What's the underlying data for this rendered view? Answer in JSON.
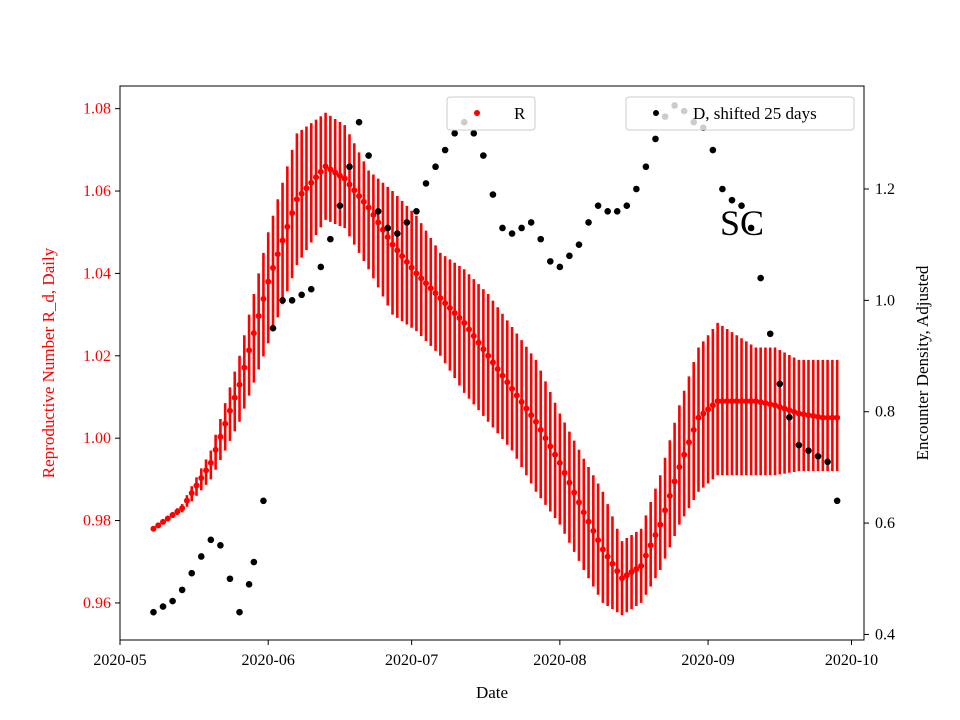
{
  "chart_data": {
    "type": "scatter",
    "xlabel": "Date",
    "ylabel_left": "Reproductive Number R_d, Daily",
    "ylabel_right": "Encounter Density, Adjusted",
    "annotation": "SC",
    "x_ticks": [
      "2020-05",
      "2020-06",
      "2020-07",
      "2020-08",
      "2020-09",
      "2020-10"
    ],
    "y_left_ticks": [
      "0.96",
      "0.98",
      "1.00",
      "1.02",
      "1.04",
      "1.06",
      "1.08"
    ],
    "y_right_ticks": [
      "0.4",
      "0.6",
      "0.8",
      "1.0",
      "1.2"
    ],
    "xlim": [
      "2020-05-01",
      "2020-10-01"
    ],
    "ylim_left": [
      0.951,
      1.0855
    ],
    "ylim_right": [
      0.39,
      1.385
    ],
    "legend_left_position": "top-center",
    "legend_right_position": "top-right",
    "grid": false,
    "colors": {
      "R": "#ff0000",
      "D": "#000000",
      "left_axis_text": "#ff0000"
    },
    "series": [
      {
        "name": "R",
        "axis": "left",
        "style": "points-with-error-bars",
        "x": [
          "2020-05-08",
          "2020-05-14",
          "2020-05-20",
          "2020-05-26",
          "2020-06-01",
          "2020-06-07",
          "2020-06-13",
          "2020-06-17",
          "2020-06-22",
          "2020-06-27",
          "2020-07-02",
          "2020-07-07",
          "2020-07-12",
          "2020-07-17",
          "2020-07-22",
          "2020-07-27",
          "2020-08-01",
          "2020-08-06",
          "2020-08-10",
          "2020-08-14",
          "2020-08-18",
          "2020-08-22",
          "2020-08-26",
          "2020-08-30",
          "2020-09-03",
          "2020-09-07",
          "2020-09-11",
          "2020-09-15",
          "2020-09-20",
          "2020-09-25",
          "2020-09-28"
        ],
        "values": [
          0.978,
          0.983,
          0.994,
          1.013,
          1.038,
          1.058,
          1.066,
          1.063,
          1.056,
          1.047,
          1.04,
          1.034,
          1.028,
          1.02,
          1.012,
          1.004,
          0.994,
          0.982,
          0.973,
          0.966,
          0.969,
          0.979,
          0.993,
          1.005,
          1.009,
          1.009,
          1.009,
          1.008,
          1.006,
          1.005,
          1.005
        ],
        "lower": [
          0.978,
          0.982,
          0.99,
          1.004,
          1.023,
          1.042,
          1.053,
          1.051,
          1.041,
          1.03,
          1.026,
          1.02,
          1.011,
          1.004,
          0.997,
          0.987,
          0.979,
          0.968,
          0.96,
          0.957,
          0.96,
          0.968,
          0.979,
          0.987,
          0.991,
          0.991,
          0.991,
          0.991,
          0.992,
          0.992,
          0.992
        ],
        "upper": [
          0.978,
          0.984,
          0.997,
          1.02,
          1.05,
          1.074,
          1.079,
          1.076,
          1.065,
          1.06,
          1.054,
          1.045,
          1.041,
          1.035,
          1.027,
          1.019,
          1.006,
          0.995,
          0.987,
          0.975,
          0.978,
          0.991,
          1.008,
          1.022,
          1.028,
          1.025,
          1.022,
          1.022,
          1.019,
          1.019,
          1.019
        ]
      },
      {
        "name": "D, shifted 25 days",
        "axis": "right",
        "style": "points",
        "x": [
          "2020-05-08",
          "2020-05-10",
          "2020-05-12",
          "2020-05-14",
          "2020-05-16",
          "2020-05-18",
          "2020-05-20",
          "2020-05-22",
          "2020-05-24",
          "2020-05-26",
          "2020-05-28",
          "2020-05-29",
          "2020-05-31",
          "2020-06-02",
          "2020-06-04",
          "2020-06-06",
          "2020-06-08",
          "2020-06-10",
          "2020-06-12",
          "2020-06-14",
          "2020-06-16",
          "2020-06-18",
          "2020-06-20",
          "2020-06-22",
          "2020-06-24",
          "2020-06-26",
          "2020-06-28",
          "2020-06-30",
          "2020-07-02",
          "2020-07-04",
          "2020-07-06",
          "2020-07-08",
          "2020-07-10",
          "2020-07-12",
          "2020-07-14",
          "2020-07-16",
          "2020-07-18",
          "2020-07-20",
          "2020-07-22",
          "2020-07-24",
          "2020-07-26",
          "2020-07-28",
          "2020-07-30",
          "2020-08-01",
          "2020-08-03",
          "2020-08-05",
          "2020-08-07",
          "2020-08-09",
          "2020-08-11",
          "2020-08-13",
          "2020-08-15",
          "2020-08-17",
          "2020-08-19",
          "2020-08-21",
          "2020-08-23",
          "2020-08-25",
          "2020-08-27",
          "2020-08-29",
          "2020-08-31",
          "2020-09-02",
          "2020-09-04",
          "2020-09-06",
          "2020-09-08",
          "2020-09-10",
          "2020-09-12",
          "2020-09-14",
          "2020-09-16",
          "2020-09-18",
          "2020-09-20",
          "2020-09-22",
          "2020-09-24",
          "2020-09-26",
          "2020-09-28"
        ],
        "values": [
          0.44,
          0.45,
          0.46,
          0.48,
          0.51,
          0.54,
          0.57,
          0.56,
          0.5,
          0.44,
          0.49,
          0.53,
          0.64,
          0.95,
          1.0,
          1.0,
          1.01,
          1.02,
          1.06,
          1.11,
          1.17,
          1.24,
          1.32,
          1.26,
          1.16,
          1.13,
          1.12,
          1.14,
          1.16,
          1.21,
          1.24,
          1.27,
          1.3,
          1.32,
          1.3,
          1.26,
          1.19,
          1.13,
          1.12,
          1.13,
          1.14,
          1.11,
          1.07,
          1.06,
          1.08,
          1.1,
          1.14,
          1.17,
          1.16,
          1.16,
          1.17,
          1.2,
          1.24,
          1.29,
          1.33,
          1.35,
          1.34,
          1.32,
          1.31,
          1.27,
          1.2,
          1.18,
          1.17,
          1.13,
          1.04,
          0.94,
          0.85,
          0.79,
          0.74,
          0.73,
          0.72,
          0.71,
          0.64
        ]
      }
    ]
  }
}
